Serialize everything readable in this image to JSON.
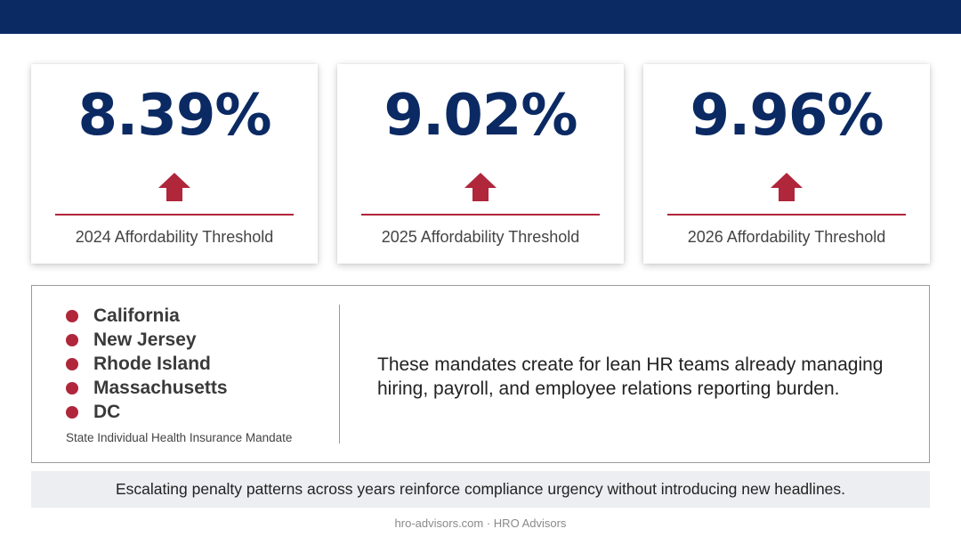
{
  "colors": {
    "navy": "#0b2a63",
    "accent_red": "#b0263b",
    "banner_bg": "#eceef1"
  },
  "cards": [
    {
      "value": "8.39%",
      "label": "2024 Affordability Threshold",
      "trend_icon": "arrow-up-icon"
    },
    {
      "value": "9.02%",
      "label": "2025 Affordability Threshold",
      "trend_icon": "arrow-up-icon"
    },
    {
      "value": "9.96%",
      "label": "2026 Affordability Threshold",
      "trend_icon": "arrow-up-icon"
    }
  ],
  "mandates": {
    "states": [
      "California",
      "New Jersey",
      "Rhode Island",
      "Massachusetts",
      "DC"
    ],
    "caption": "State Individual Health Insurance Mandate",
    "description": "These mandates create for lean HR teams already managing hiring, payroll, and employee relations reporting burden."
  },
  "banner": {
    "text": "Escalating penalty patterns across years reinforce compliance urgency without introducing new headlines."
  },
  "footer": {
    "text": "hro-advisors.com · HRO Advisors"
  }
}
